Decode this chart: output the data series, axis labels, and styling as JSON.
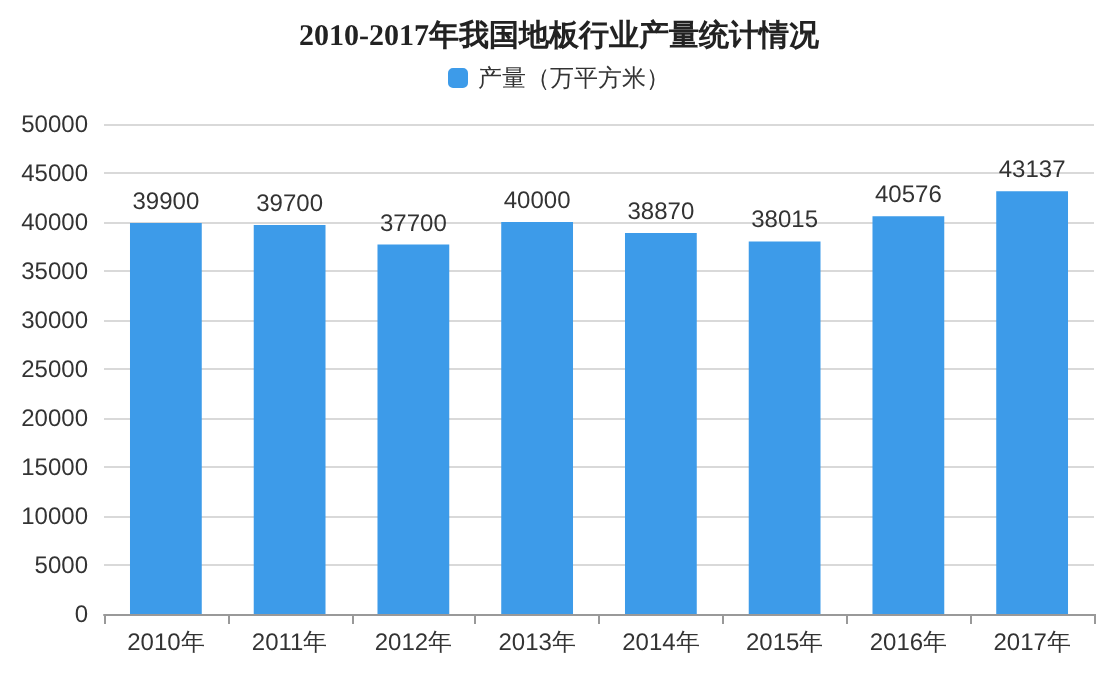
{
  "chart_data": {
    "type": "bar",
    "title": "2010-2017年我国地板行业产量统计情况",
    "categories": [
      "2010年",
      "2011年",
      "2012年",
      "2013年",
      "2014年",
      "2015年",
      "2016年",
      "2017年"
    ],
    "series": [
      {
        "name": "产量（万平方米）",
        "color": "#3d9be9",
        "values": [
          39900,
          39700,
          37700,
          40000,
          38870,
          38015,
          40576,
          43137
        ]
      }
    ],
    "ylim": [
      0,
      50000
    ],
    "yticks": [
      0,
      5000,
      10000,
      15000,
      20000,
      25000,
      30000,
      35000,
      40000,
      45000,
      50000
    ],
    "grid": "y",
    "legend": "top",
    "data_labels": true
  }
}
